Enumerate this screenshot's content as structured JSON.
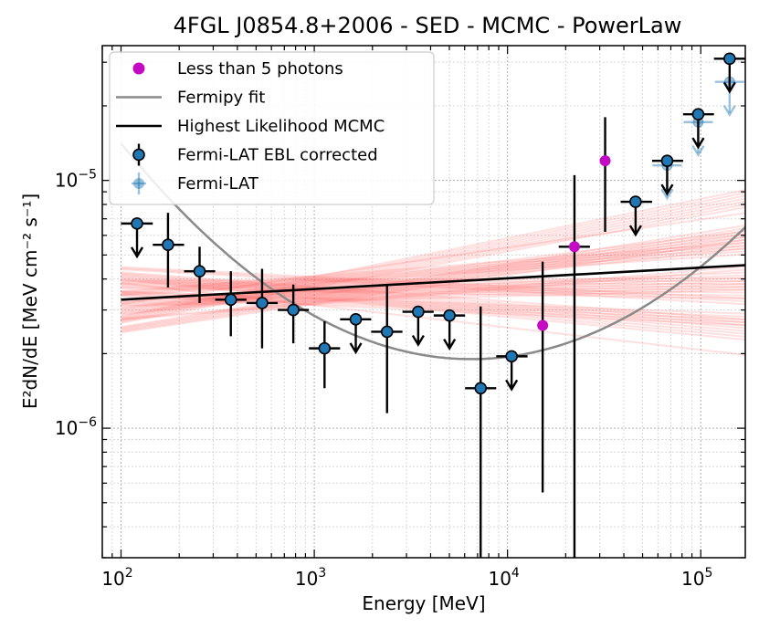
{
  "chart_data": {
    "type": "scatter",
    "title": "4FGL J0854.8+2006 - SED - MCMC - PowerLaw",
    "xlabel": "Energy [MeV]",
    "ylabel": "E²dN/dE [MeV cm⁻² s⁻¹]",
    "xscale": "log",
    "yscale": "log",
    "xlim": [
      80,
      170000
    ],
    "ylim": [
      3e-07,
      3.5e-05
    ],
    "x_ticks": [
      {
        "value": 100,
        "base": "10",
        "exp": "2"
      },
      {
        "value": 1000,
        "base": "10",
        "exp": "3"
      },
      {
        "value": 10000,
        "base": "10",
        "exp": "4"
      },
      {
        "value": 100000,
        "base": "10",
        "exp": "5"
      }
    ],
    "y_ticks": [
      {
        "value": 1e-06,
        "base": "10",
        "exp": "−6"
      },
      {
        "value": 1e-05,
        "base": "10",
        "exp": "−5"
      }
    ],
    "grid": true,
    "legend": {
      "placement": "top-left",
      "entries": [
        {
          "label": "Less than 5 photons",
          "kind": "dot",
          "color": "#c20bc2"
        },
        {
          "label": "Fermipy fit",
          "kind": "line",
          "color": "#8a8a8a"
        },
        {
          "label": "Highest Likelihood MCMC",
          "kind": "line",
          "color": "#000000"
        },
        {
          "label": "Fermi-LAT EBL corrected",
          "kind": "errpoint",
          "color": "#1f77b4"
        },
        {
          "label": "Fermi-LAT",
          "kind": "errpoint-faint",
          "color": "#1f77b4"
        }
      ]
    },
    "colors": {
      "ebl_point": "#1f77b4",
      "lowcount_point": "#c20bc2",
      "fermipy_fit": "#8a8a8a",
      "best_fit": "#000000",
      "mcmc_samples": "#ff4040"
    },
    "series": [
      {
        "name": "Fermi-LAT EBL corrected",
        "points": [
          {
            "x": 121,
            "y": 6.7e-06,
            "xlo": 100,
            "xhi": 146,
            "upper_limit": true
          },
          {
            "x": 175,
            "y": 5.5e-06,
            "xlo": 146,
            "xhi": 212,
            "ylo": 3.7e-06,
            "yhi": 7.4e-06
          },
          {
            "x": 255,
            "y": 4.3e-06,
            "xlo": 212,
            "xhi": 307,
            "ylo": 3.2e-06,
            "yhi": 5.4e-06
          },
          {
            "x": 370,
            "y": 3.3e-06,
            "xlo": 307,
            "xhi": 446,
            "ylo": 2.35e-06,
            "yhi": 4.3e-06
          },
          {
            "x": 537,
            "y": 3.2e-06,
            "xlo": 446,
            "xhi": 647,
            "ylo": 2.1e-06,
            "yhi": 4.4e-06
          },
          {
            "x": 779,
            "y": 3e-06,
            "xlo": 647,
            "xhi": 938,
            "ylo": 2.2e-06,
            "yhi": 3.8e-06
          },
          {
            "x": 1130,
            "y": 2.1e-06,
            "xlo": 938,
            "xhi": 1360,
            "ylo": 1.45e-06,
            "yhi": 2.7e-06
          },
          {
            "x": 1640,
            "y": 2.75e-06,
            "xlo": 1360,
            "xhi": 1970,
            "upper_limit": true
          },
          {
            "x": 2380,
            "y": 2.45e-06,
            "xlo": 1970,
            "xhi": 2860,
            "ylo": 1.15e-06,
            "yhi": 3.8e-06
          },
          {
            "x": 3450,
            "y": 2.95e-06,
            "xlo": 2860,
            "xhi": 4150,
            "upper_limit": true
          },
          {
            "x": 5010,
            "y": 2.85e-06,
            "xlo": 4150,
            "xhi": 6030,
            "upper_limit": true
          },
          {
            "x": 7260,
            "y": 1.45e-06,
            "xlo": 6030,
            "xhi": 8740,
            "ylo": 2e-07,
            "yhi": 3.1e-06
          },
          {
            "x": 10500,
            "y": 1.95e-06,
            "xlo": 8740,
            "xhi": 12700,
            "upper_limit": true
          },
          {
            "x": 22200,
            "y": 5.4e-06,
            "xlo": 18400,
            "xhi": 26700,
            "ylo": 2e-07,
            "yhi": 1.05e-05,
            "lowcount": true
          },
          {
            "x": 46000,
            "y": 8.2e-06,
            "xlo": 38500,
            "xhi": 56000,
            "upper_limit": true
          },
          {
            "x": 67000,
            "y": 1.2e-05,
            "xlo": 56000,
            "xhi": 81000,
            "upper_limit": true
          },
          {
            "x": 97000,
            "y": 1.85e-05,
            "xlo": 81000,
            "xhi": 117000,
            "upper_limit": true
          },
          {
            "x": 141000,
            "y": 3.1e-05,
            "xlo": 117000,
            "xhi": 170000,
            "upper_limit": true
          }
        ]
      },
      {
        "name": "Less than 5 photons",
        "points": [
          {
            "x": 15200,
            "y": 2.6e-06,
            "ylo": 5.5e-07,
            "yhi": 4.7e-06
          },
          {
            "x": 32000,
            "y": 1.2e-05,
            "ylo": 6.2e-06,
            "yhi": 1.8e-05
          }
        ]
      },
      {
        "name": "Fermi-LAT",
        "points": [
          {
            "x": 67000,
            "y": 1.15e-05,
            "upper_limit": true
          },
          {
            "x": 97000,
            "y": 1.72e-05,
            "upper_limit": true
          },
          {
            "x": 141000,
            "y": 2.5e-05,
            "upper_limit": true
          }
        ]
      }
    ],
    "fermipy_fit": {
      "form": "log-parabola",
      "pivot_energy_MeV": 6500,
      "norm_at_pivot": 1.9e-06,
      "curvature": 0.265,
      "x_range": [
        100,
        170000
      ]
    },
    "best_fit": {
      "form": "power-law",
      "x_range": [
        100,
        170000
      ],
      "y_start": 3.3e-06,
      "y_end": 4.55e-06
    },
    "mcmc_samples": {
      "count": 60,
      "pivot_energy_MeV": 1000,
      "pivot_flux": 3.6e-06,
      "slope_range": [
        -0.09,
        0.16
      ],
      "x_range": [
        100,
        170000
      ]
    }
  }
}
